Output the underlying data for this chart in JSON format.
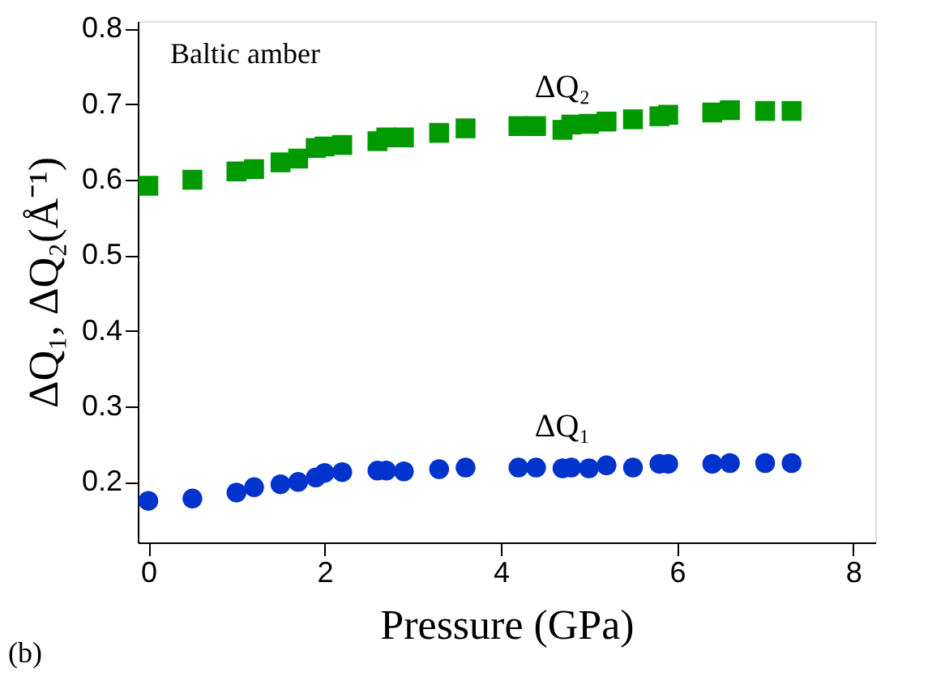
{
  "chart_data": {
    "type": "scatter",
    "xlabel": "Pressure (GPa)",
    "ylabel": "ΔQ₁, ΔQ₂(Å⁻¹)",
    "x": [
      0,
      0.5,
      1.0,
      1.2,
      1.5,
      1.7,
      1.9,
      2.0,
      2.2,
      2.6,
      2.7,
      2.9,
      3.3,
      3.6,
      4.2,
      4.4,
      4.7,
      4.8,
      5.0,
      5.2,
      5.5,
      5.8,
      5.9,
      6.4,
      6.6,
      7.0,
      7.3
    ],
    "series": [
      {
        "name": "ΔQ₁",
        "color": "#0033cc",
        "marker": "circle",
        "values": [
          0.175,
          0.178,
          0.186,
          0.193,
          0.197,
          0.2,
          0.206,
          0.212,
          0.213,
          0.215,
          0.215,
          0.214,
          0.217,
          0.219,
          0.219,
          0.219,
          0.218,
          0.219,
          0.218,
          0.222,
          0.219,
          0.224,
          0.224,
          0.224,
          0.225,
          0.225,
          0.225
        ]
      },
      {
        "name": "ΔQ₂",
        "color": "#009900",
        "marker": "square",
        "values": [
          0.592,
          0.6,
          0.611,
          0.614,
          0.623,
          0.628,
          0.642,
          0.644,
          0.646,
          0.651,
          0.656,
          0.656,
          0.662,
          0.668,
          0.671,
          0.671,
          0.666,
          0.673,
          0.674,
          0.677,
          0.68,
          0.684,
          0.686,
          0.689,
          0.692,
          0.691,
          0.691
        ]
      }
    ],
    "annotations": [
      "Baltic amber",
      "(b)"
    ],
    "xlim": [
      -0.12,
      8.25
    ],
    "xticks": [
      0,
      2,
      4,
      6,
      8
    ],
    "ylim": [
      0.12,
      0.81
    ],
    "yticks": [
      0.2,
      0.3,
      0.4,
      0.5,
      0.6,
      0.7,
      0.8
    ],
    "grid": false
  }
}
